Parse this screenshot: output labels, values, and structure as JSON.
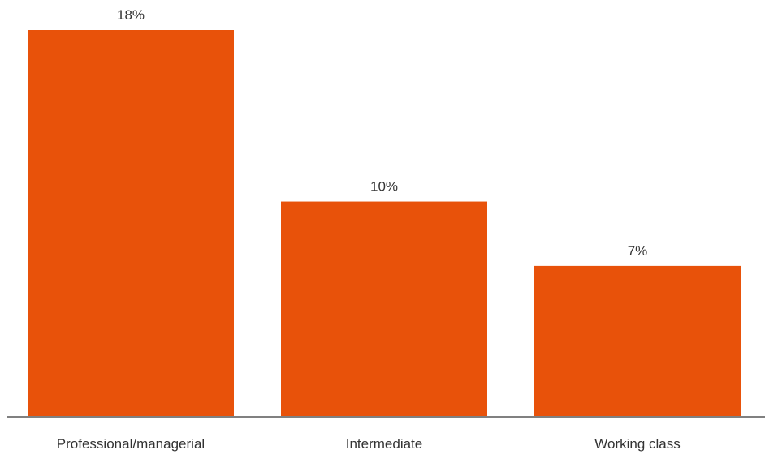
{
  "chart_data": {
    "type": "bar",
    "categories": [
      "Professional/managerial",
      "Intermediate",
      "Working class"
    ],
    "values": [
      18,
      10,
      7
    ],
    "value_labels": [
      "18%",
      "10%",
      "7%"
    ],
    "title": "",
    "xlabel": "",
    "ylabel": "",
    "ylim": [
      0,
      18
    ],
    "grid": false,
    "legend": "none",
    "bar_color": "#e8520a",
    "axis_color": "#808080"
  }
}
